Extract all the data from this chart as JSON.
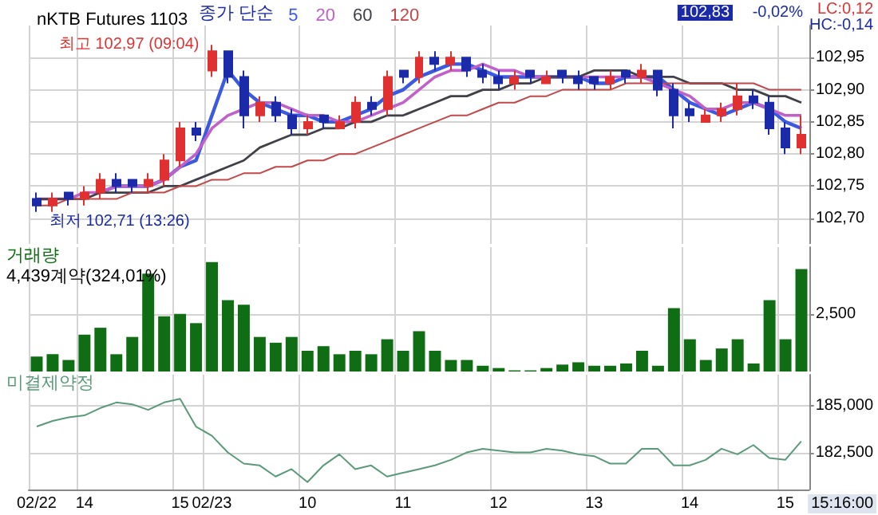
{
  "chart_data": [
    {
      "type": "candlestick",
      "title": "nKTB Futures 1103",
      "legend_title": "종가 단순",
      "legend": "top left",
      "grid": true,
      "tick_labels": "y",
      "categories": [
        "02/22",
        null,
        null,
        "14",
        null,
        null,
        null,
        null,
        null,
        "15",
        null,
        "02/23",
        null,
        null,
        null,
        null,
        null,
        "10",
        null,
        null,
        null,
        null,
        null,
        "11",
        null,
        null,
        null,
        null,
        null,
        "12",
        null,
        null,
        null,
        null,
        null,
        "13",
        null,
        null,
        null,
        null,
        null,
        "14",
        null,
        null,
        null,
        null,
        null,
        "15",
        null
      ],
      "ohlc": [
        [
          102.73,
          102.74,
          102.71,
          102.72
        ],
        [
          102.72,
          102.74,
          102.71,
          102.73
        ],
        [
          102.74,
          102.74,
          102.72,
          102.73
        ],
        [
          102.73,
          102.75,
          102.72,
          102.74
        ],
        [
          102.74,
          102.77,
          102.73,
          102.76
        ],
        [
          102.76,
          102.77,
          102.74,
          102.75
        ],
        [
          102.76,
          102.76,
          102.74,
          102.75
        ],
        [
          102.75,
          102.77,
          102.74,
          102.76
        ],
        [
          102.76,
          102.8,
          102.75,
          102.79
        ],
        [
          102.79,
          102.85,
          102.78,
          102.84
        ],
        [
          102.84,
          102.85,
          102.82,
          102.83
        ],
        [
          102.93,
          102.97,
          102.92,
          102.96
        ],
        [
          102.96,
          102.96,
          102.91,
          102.92
        ],
        [
          102.92,
          102.93,
          102.84,
          102.86
        ],
        [
          102.86,
          102.89,
          102.85,
          102.88
        ],
        [
          102.88,
          102.89,
          102.85,
          102.86
        ],
        [
          102.86,
          102.87,
          102.83,
          102.84
        ],
        [
          102.84,
          102.86,
          102.83,
          102.85
        ],
        [
          102.86,
          102.86,
          102.84,
          102.85
        ],
        [
          102.84,
          102.86,
          102.84,
          102.85
        ],
        [
          102.85,
          102.89,
          102.84,
          102.88
        ],
        [
          102.88,
          102.89,
          102.86,
          102.87
        ],
        [
          102.87,
          102.93,
          102.86,
          102.92
        ],
        [
          102.93,
          102.93,
          102.91,
          102.92
        ],
        [
          102.92,
          102.96,
          102.91,
          102.95
        ],
        [
          102.95,
          102.96,
          102.93,
          102.94
        ],
        [
          102.94,
          102.96,
          102.93,
          102.95
        ],
        [
          102.95,
          102.95,
          102.92,
          102.93
        ],
        [
          102.93,
          102.94,
          102.91,
          102.92
        ],
        [
          102.92,
          102.93,
          102.9,
          102.91
        ],
        [
          102.91,
          102.93,
          102.9,
          102.92
        ],
        [
          102.93,
          102.93,
          102.91,
          102.92
        ],
        [
          102.91,
          102.93,
          102.91,
          102.92
        ],
        [
          102.93,
          102.93,
          102.91,
          102.92
        ],
        [
          102.92,
          102.93,
          102.9,
          102.91
        ],
        [
          102.92,
          102.92,
          102.9,
          102.91
        ],
        [
          102.91,
          102.93,
          102.9,
          102.92
        ],
        [
          102.93,
          102.93,
          102.91,
          102.92
        ],
        [
          102.92,
          102.94,
          102.91,
          102.93
        ],
        [
          102.93,
          102.93,
          102.89,
          102.9
        ],
        [
          102.9,
          102.91,
          102.84,
          102.86
        ],
        [
          102.87,
          102.88,
          102.85,
          102.86
        ],
        [
          102.85,
          102.87,
          102.85,
          102.86
        ],
        [
          102.86,
          102.88,
          102.85,
          102.87
        ],
        [
          102.87,
          102.91,
          102.86,
          102.89
        ],
        [
          102.89,
          102.9,
          102.87,
          102.88
        ],
        [
          102.88,
          102.89,
          102.83,
          102.84
        ],
        [
          102.84,
          102.85,
          102.8,
          102.81
        ],
        [
          102.81,
          102.86,
          102.8,
          102.83
        ]
      ],
      "colors": [
        "#1a2aa8",
        "#e03030",
        "#1a2aa8",
        "#e03030",
        "#e03030",
        "#1a2aa8",
        "#1a2aa8",
        "#e03030",
        "#e03030",
        "#e03030",
        "#1a2aa8",
        "#e03030",
        "#1a2aa8",
        "#1a2aa8",
        "#e03030",
        "#1a2aa8",
        "#1a2aa8",
        "#e03030",
        "#1a2aa8",
        "#e03030",
        "#e03030",
        "#1a2aa8",
        "#e03030",
        "#1a2aa8",
        "#e03030",
        "#1a2aa8",
        "#e03030",
        "#1a2aa8",
        "#1a2aa8",
        "#1a2aa8",
        "#e03030",
        "#1a2aa8",
        "#e03030",
        "#1a2aa8",
        "#1a2aa8",
        "#1a2aa8",
        "#e03030",
        "#1a2aa8",
        "#e03030",
        "#1a2aa8",
        "#1a2aa8",
        "#1a2aa8",
        "#e03030",
        "#e03030",
        "#e03030",
        "#1a2aa8",
        "#1a2aa8",
        "#1a2aa8",
        "#e03030"
      ],
      "series": [
        {
          "type": "line",
          "name": "5",
          "color": "#3c5ae0",
          "values": [
            null,
            null,
            null,
            null,
            102.74,
            102.75,
            102.75,
            102.75,
            102.76,
            102.78,
            102.79,
            102.86,
            102.93,
            102.9,
            102.88,
            102.87,
            102.86,
            102.86,
            102.85,
            102.85,
            102.86,
            102.87,
            102.89,
            102.9,
            102.92,
            102.93,
            102.94,
            102.94,
            102.93,
            102.92,
            102.92,
            102.92,
            102.92,
            102.92,
            102.92,
            102.91,
            102.91,
            102.92,
            102.92,
            102.92,
            102.9,
            102.88,
            102.87,
            102.86,
            102.87,
            102.88,
            102.87,
            102.85,
            102.84
          ]
        },
        {
          "type": "line",
          "name": "20",
          "color": "#c060c8",
          "values": [
            102.73,
            102.73,
            102.73,
            102.74,
            102.74,
            102.75,
            102.75,
            102.75,
            102.76,
            102.78,
            102.8,
            102.84,
            102.86,
            102.87,
            102.88,
            102.88,
            102.87,
            102.86,
            102.86,
            102.85,
            102.85,
            102.86,
            102.87,
            102.88,
            102.9,
            102.92,
            102.93,
            102.93,
            102.94,
            102.93,
            102.93,
            102.92,
            102.92,
            102.92,
            102.92,
            102.92,
            102.92,
            102.92,
            102.92,
            102.91,
            102.9,
            102.89,
            102.87,
            102.87,
            102.88,
            102.88,
            102.87,
            102.86,
            102.86
          ]
        },
        {
          "type": "line",
          "name": "60",
          "color": "#404048",
          "values": [
            102.73,
            102.73,
            102.73,
            102.73,
            102.74,
            102.74,
            102.74,
            102.74,
            102.75,
            102.75,
            102.76,
            102.77,
            102.78,
            102.79,
            102.81,
            102.82,
            102.83,
            102.83,
            102.84,
            102.84,
            102.85,
            102.85,
            102.86,
            102.86,
            102.87,
            102.88,
            102.89,
            102.89,
            102.9,
            102.9,
            102.91,
            102.91,
            102.92,
            102.92,
            102.92,
            102.93,
            102.93,
            102.93,
            102.92,
            102.92,
            102.92,
            102.91,
            102.91,
            102.91,
            102.9,
            102.9,
            102.89,
            102.89,
            102.88
          ]
        },
        {
          "type": "line",
          "name": "120",
          "color": "#c04848",
          "values": [
            102.72,
            102.72,
            102.73,
            102.73,
            102.73,
            102.73,
            102.74,
            102.74,
            102.74,
            102.75,
            102.75,
            102.76,
            102.76,
            102.77,
            102.77,
            102.78,
            102.78,
            102.79,
            102.79,
            102.8,
            102.8,
            102.81,
            102.82,
            102.83,
            102.84,
            102.85,
            102.86,
            102.86,
            102.87,
            102.88,
            102.88,
            102.89,
            102.89,
            102.9,
            102.9,
            102.9,
            102.9,
            102.91,
            102.91,
            102.91,
            102.91,
            102.91,
            102.91,
            102.91,
            102.91,
            102.91,
            102.9,
            102.9,
            102.9
          ]
        }
      ],
      "ylim": [
        102.66,
        103.0
      ],
      "yticks": [
        {
          "value": 102.7,
          "label": "102,70"
        },
        {
          "value": 102.75,
          "label": "102,75"
        },
        {
          "value": 102.8,
          "label": "102,80"
        },
        {
          "value": 102.85,
          "label": "102,85"
        },
        {
          "value": 102.9,
          "label": "102,90"
        },
        {
          "value": 102.95,
          "label": "102,95"
        }
      ],
      "annotations": [
        {
          "text": "최고 102,97 (09:04)",
          "x": "02/23",
          "y": 102.97
        },
        {
          "text": "최저 102,71 (13:26)",
          "x": "02/22",
          "y": 102.71
        },
        "LC:0,12",
        "HC:-0,14",
        "102,83",
        "-0,02%"
      ]
    },
    {
      "type": "bar",
      "title": "거래량",
      "subtitle": "4,439계약(324,01%)",
      "grid": true,
      "tick_labels": "y",
      "color": "#0f6e14",
      "categories": [
        "02/22",
        null,
        null,
        "14",
        null,
        null,
        null,
        null,
        null,
        "15",
        null,
        "02/23",
        null,
        null,
        null,
        null,
        null,
        "10",
        null,
        null,
        null,
        null,
        null,
        "11",
        null,
        null,
        null,
        null,
        null,
        "12",
        null,
        null,
        null,
        null,
        null,
        "13",
        null,
        null,
        null,
        null,
        null,
        "14",
        null,
        null,
        null,
        null,
        null,
        "15",
        null
      ],
      "values": [
        650,
        750,
        500,
        1600,
        1900,
        750,
        1500,
        4250,
        2400,
        2500,
        2100,
        4750,
        3100,
        2900,
        1500,
        1250,
        1500,
        900,
        1100,
        750,
        900,
        750,
        1400,
        900,
        1750,
        900,
        500,
        500,
        250,
        150,
        50,
        50,
        150,
        300,
        400,
        250,
        250,
        350,
        900,
        250,
        2750,
        1400,
        500,
        1000,
        1400,
        350,
        3100,
        1400,
        4450
      ],
      "ylim": [
        0,
        5400
      ],
      "yticks": [
        {
          "value": 2500,
          "label": "2,500"
        }
      ]
    },
    {
      "type": "line",
      "title": "미결제약정",
      "grid": true,
      "color": "#5a9a78",
      "categories": [
        "02/22",
        null,
        null,
        "14",
        null,
        null,
        null,
        null,
        null,
        "15",
        null,
        "02/23",
        null,
        null,
        null,
        null,
        null,
        "10",
        null,
        null,
        null,
        null,
        null,
        "11",
        null,
        null,
        null,
        null,
        null,
        "12",
        null,
        null,
        null,
        null,
        null,
        "13",
        null,
        null,
        null,
        null,
        null,
        "14",
        null,
        null,
        null,
        null,
        null,
        "15",
        null
      ],
      "values": [
        183900,
        184200,
        184400,
        184500,
        184900,
        185200,
        185100,
        184800,
        185200,
        185400,
        183900,
        183400,
        182500,
        181900,
        181800,
        181200,
        181600,
        180900,
        181800,
        182400,
        181600,
        181800,
        181200,
        181400,
        181600,
        181800,
        182100,
        182500,
        182700,
        182600,
        182500,
        182500,
        182700,
        182600,
        182400,
        182300,
        181900,
        181900,
        182700,
        182700,
        181800,
        181800,
        182100,
        182700,
        182400,
        182900,
        182200,
        182100,
        183100
      ],
      "ylim": [
        180500,
        186700
      ],
      "yticks": [
        {
          "value": 182500,
          "label": "182,500"
        },
        {
          "value": 185000,
          "label": "185,000"
        }
      ],
      "annotations": [
        "15:16:00"
      ]
    }
  ]
}
